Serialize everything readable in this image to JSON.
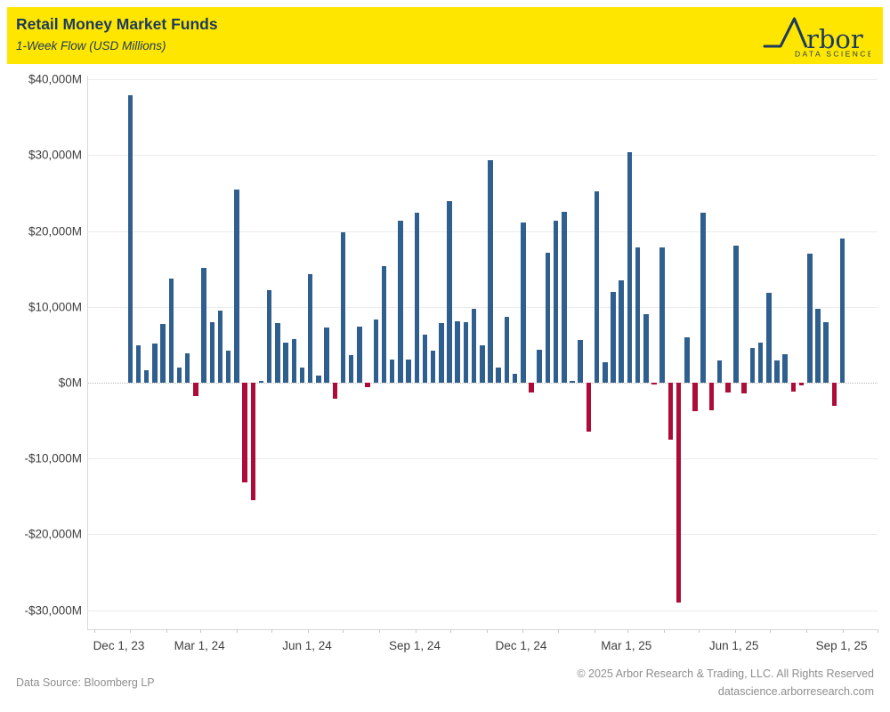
{
  "header": {
    "title": "Retail Money Market Funds",
    "subtitle": "1-Week Flow (USD Millions)",
    "logo": {
      "brand": "Arbor",
      "brand_text": "rbor",
      "tagline": "DATA SCIENCE"
    }
  },
  "footer": {
    "source": "Data Source: Bloomberg LP",
    "copyright": "© 2025 Arbor Research & Trading, LLC. All Rights Reserved",
    "website": "datascience.arborresearch.com"
  },
  "colors": {
    "positive": "#2F5F8F",
    "negative": "#AE0C38",
    "header_bg": "#FFE600",
    "header_text": "#1C3A5E",
    "grid": "#ECECEC",
    "zero_line": "#B9B9B9",
    "axis_text": "#3F3F3F",
    "footer_text": "#8E8E8E"
  },
  "chart_data": {
    "type": "bar",
    "title": "Retail Money Market Funds",
    "subtitle": "1-Week Flow (USD Millions)",
    "unit": "USD Millions",
    "frequency": "weekly",
    "legend": "none",
    "grid": "horizontal-light, dotted zero line",
    "ylim": [
      -32500,
      40500
    ],
    "y_ticks": [
      {
        "value": 40000,
        "label": "$40,000M"
      },
      {
        "value": 30000,
        "label": "$30,000M"
      },
      {
        "value": 20000,
        "label": "$20,000M"
      },
      {
        "value": 10000,
        "label": "$10,000M"
      },
      {
        "value": 0,
        "label": "$0M"
      },
      {
        "value": -10000,
        "label": "-$10,000M"
      },
      {
        "value": -20000,
        "label": "-$20,000M"
      },
      {
        "value": -30000,
        "label": "-$30,000M"
      }
    ],
    "x_axis": {
      "start_date": "2023-11-26",
      "end_date": "2025-10-01",
      "month_tick_start": "2023-12-01",
      "month_tick_end": "2025-10-01",
      "labels": [
        {
          "date": "2023-12-01",
          "label": "Dec 1, 23"
        },
        {
          "date": "2024-03-01",
          "label": "Mar 1, 24"
        },
        {
          "date": "2024-06-01",
          "label": "Jun 1, 24"
        },
        {
          "date": "2024-09-01",
          "label": "Sep 1, 24"
        },
        {
          "date": "2024-12-01",
          "label": "Dec 1, 24"
        },
        {
          "date": "2025-03-01",
          "label": "Mar 1, 25"
        },
        {
          "date": "2025-06-01",
          "label": "Jun 1, 25"
        },
        {
          "date": "2025-09-01",
          "label": "Sep 1, 25"
        }
      ]
    },
    "weeks": [
      "2024-01-01",
      "2024-01-08",
      "2024-01-15",
      "2024-01-22",
      "2024-01-29",
      "2024-02-05",
      "2024-02-12",
      "2024-02-19",
      "2024-02-26",
      "2024-03-04",
      "2024-03-11",
      "2024-03-18",
      "2024-03-25",
      "2024-04-01",
      "2024-04-08",
      "2024-04-15",
      "2024-04-22",
      "2024-04-29",
      "2024-05-06",
      "2024-05-13",
      "2024-05-20",
      "2024-05-27",
      "2024-06-03",
      "2024-06-10",
      "2024-06-17",
      "2024-06-24",
      "2024-07-01",
      "2024-07-08",
      "2024-07-15",
      "2024-07-22",
      "2024-07-29",
      "2024-08-05",
      "2024-08-12",
      "2024-08-19",
      "2024-08-26",
      "2024-09-02",
      "2024-09-09",
      "2024-09-16",
      "2024-09-23",
      "2024-09-30",
      "2024-10-07",
      "2024-10-14",
      "2024-10-21",
      "2024-10-28",
      "2024-11-04",
      "2024-11-11",
      "2024-11-18",
      "2024-11-25",
      "2024-12-02",
      "2024-12-09",
      "2024-12-16",
      "2024-12-23",
      "2024-12-30",
      "2025-01-06",
      "2025-01-13",
      "2025-01-20",
      "2025-01-27",
      "2025-02-03",
      "2025-02-10",
      "2025-02-17",
      "2025-02-24",
      "2025-03-03",
      "2025-03-10",
      "2025-03-17",
      "2025-03-24",
      "2025-03-31",
      "2025-04-07",
      "2025-04-14",
      "2025-04-21",
      "2025-04-28",
      "2025-05-05",
      "2025-05-12",
      "2025-05-19",
      "2025-05-26",
      "2025-06-02",
      "2025-06-09",
      "2025-06-16",
      "2025-06-23",
      "2025-06-30",
      "2025-07-07",
      "2025-07-14",
      "2025-07-21",
      "2025-07-28",
      "2025-08-04",
      "2025-08-11",
      "2025-08-18",
      "2025-08-25",
      "2025-09-01"
    ],
    "values": [
      37900,
      4900,
      1700,
      5200,
      7700,
      13700,
      2000,
      3900,
      -1700,
      15200,
      8000,
      9500,
      4200,
      25500,
      -13100,
      -15500,
      300,
      12200,
      7900,
      5300,
      5800,
      2000,
      14300,
      1000,
      7300,
      -2100,
      19800,
      3700,
      7400,
      -600,
      8400,
      15400,
      3100,
      21400,
      3100,
      22400,
      6300,
      4200,
      7900,
      24000,
      8100,
      8000,
      9800,
      4900,
      29300,
      2000,
      8700,
      1200,
      21100,
      -1300,
      4400,
      17100,
      21400,
      22500,
      300,
      5700,
      -6500,
      25200,
      2700,
      12000,
      13500,
      30400,
      17800,
      9100,
      -200,
      17800,
      -7500,
      -29000,
      6000,
      -3800,
      22400,
      -3600,
      3000,
      -1300,
      18100,
      -1400,
      4600,
      5300,
      11900,
      2900,
      3800,
      -1200,
      -300,
      17000,
      9800,
      8000,
      -3100,
      19000
    ]
  }
}
